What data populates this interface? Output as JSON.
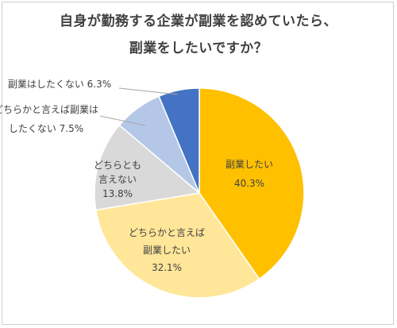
{
  "chart_data": {
    "type": "pie",
    "title_line1": "自身が勤務する企業が副業を認めていたら、",
    "title_line2": "副業をしたいですか？",
    "slices": [
      {
        "label_lines": [
          "副業したい"
        ],
        "value_text": "40.3%",
        "value": 40.3,
        "color": "#FFC000"
      },
      {
        "label_lines": [
          "どちらかと言えば",
          "副業したい"
        ],
        "value_text": "32.1%",
        "value": 32.1,
        "color": "#FFE699"
      },
      {
        "label_lines": [
          "どちらとも",
          "言えない"
        ],
        "value_text": "13.8%",
        "value": 13.8,
        "color": "#D9D9D9"
      },
      {
        "label_lines": [
          "どちらかと言えば副業は",
          "したくない"
        ],
        "value_text": "7.5%",
        "value": 7.5,
        "color": "#B4C7E7"
      },
      {
        "label_lines": [
          "副業はしたくない"
        ],
        "value_text": "6.3%",
        "value": 6.3,
        "color": "#4472C4"
      }
    ]
  }
}
